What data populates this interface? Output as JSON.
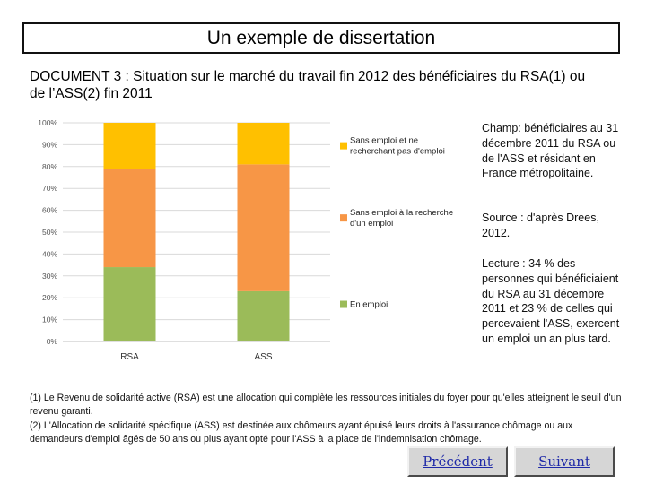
{
  "slide": {
    "title": "Un exemple de dissertation",
    "document_title": "DOCUMENT 3 : Situation sur le marché du travail fin 2012 des bénéficiaires du RSA(1) ou de l’ASS(2) fin 2011"
  },
  "notes": {
    "champ": "Champ:  bénéficiaires au  31   décembre 2011   du  RSA ou  de l'ASS  et résidant  en France métropolitaine.",
    "source": "Source : d'après Drees, 2012.",
    "lecture": "Lecture : 34 % des personnes qui bénéficiaient du RSA au 31 décembre 2011 et 23 % de celles qui percevaient l'ASS, exercent un emploi un an plus tard."
  },
  "footnotes": {
    "f1": "(1) Le Revenu de solidarité active (RSA) est une allocation qui complète les ressources initiales du foyer pour qu'elles atteignent le seuil d'un revenu garanti.",
    "f2": "(2) L'Allocation de solidarité spécifique (ASS) est destinée aux chômeurs ayant épuisé leurs droits à l'assurance chômage ou aux demandeurs d'emploi âgés de 50 ans ou plus ayant opté pour l'ASS à la place de l'indemnisation chômage."
  },
  "nav": {
    "prev_label": "Précédent",
    "next_label": "Suivant"
  },
  "chart_data": {
    "type": "bar",
    "stacked": true,
    "categories": [
      "RSA",
      "ASS"
    ],
    "series": [
      {
        "name": "En emploi",
        "values": [
          34,
          23
        ],
        "color": "#9bbb59"
      },
      {
        "name": "Sans emploi à la recherche d'un emploi",
        "values": [
          45,
          58
        ],
        "color": "#f79646"
      },
      {
        "name": "Sans emploi et ne recherchant pas d'emploi",
        "values": [
          21,
          19
        ],
        "color": "#ffc000"
      }
    ],
    "legend_lines": [
      [
        "En emploi"
      ],
      [
        "Sans emploi à la recherche",
        "d'un emploi"
      ],
      [
        "Sans emploi et ne",
        "recherchant pas d'emploi"
      ]
    ],
    "yticks": [
      "0%",
      "10%",
      "20%",
      "30%",
      "40%",
      "50%",
      "60%",
      "70%",
      "80%",
      "90%",
      "100%"
    ],
    "ylim": [
      0,
      100
    ],
    "grid": true,
    "legend_position": "right"
  }
}
